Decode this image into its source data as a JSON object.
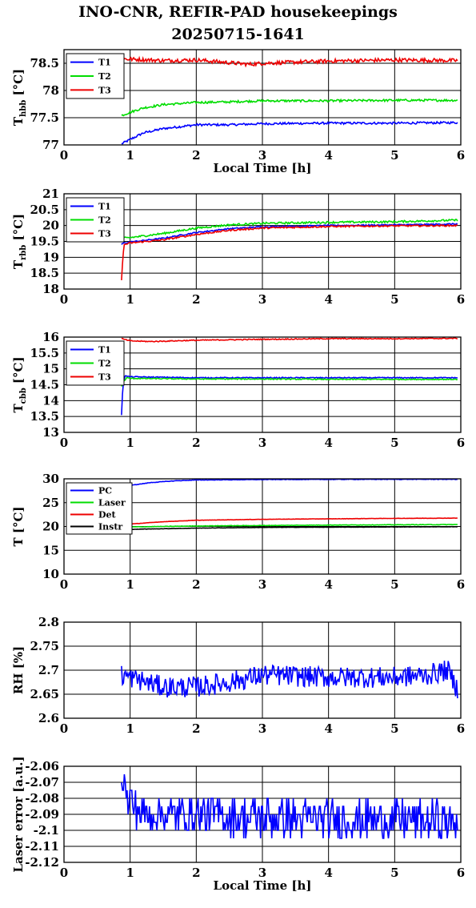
{
  "title_line1": "INO-CNR, REFIR-PAD housekeepings",
  "title_line2": "20250715-1641",
  "colors": {
    "blue": "#0000ff",
    "green": "#00dd00",
    "red": "#ee0000",
    "black": "#000000"
  },
  "chart_data": [
    {
      "type": "line",
      "id": "tbb-hot",
      "ylabel_main": "T",
      "ylabel_sub": "hbb",
      "ylabel_unit": "[°C]",
      "xlabel": "Local Time [h]",
      "xlim": [
        0,
        6
      ],
      "ylim": [
        77,
        78.75
      ],
      "xticks": [
        "0",
        "1",
        "2",
        "3",
        "4",
        "5",
        "6"
      ],
      "yticks": [
        {
          "v": 77,
          "label": "77"
        },
        {
          "v": 77.5,
          "label": "77.5"
        },
        {
          "v": 78,
          "label": "78"
        },
        {
          "v": 78.5,
          "label": "78.5"
        }
      ],
      "legend": [
        {
          "name": "T1",
          "color": "blue"
        },
        {
          "name": "T2",
          "color": "green"
        },
        {
          "name": "T3",
          "color": "red"
        }
      ],
      "series": [
        {
          "name": "T1",
          "color": "blue",
          "noise": 0.02,
          "points": [
            [
              0.87,
              77.02
            ],
            [
              1.0,
              77.1
            ],
            [
              1.2,
              77.22
            ],
            [
              1.5,
              77.3
            ],
            [
              2.0,
              77.37
            ],
            [
              2.5,
              77.37
            ],
            [
              3.0,
              77.39
            ],
            [
              4.0,
              77.4
            ],
            [
              5.0,
              77.4
            ],
            [
              5.95,
              77.41
            ]
          ]
        },
        {
          "name": "T2",
          "color": "green",
          "noise": 0.02,
          "points": [
            [
              0.87,
              77.54
            ],
            [
              1.0,
              77.6
            ],
            [
              1.2,
              77.68
            ],
            [
              1.5,
              77.74
            ],
            [
              2.0,
              77.78
            ],
            [
              2.5,
              77.79
            ],
            [
              3.0,
              77.81
            ],
            [
              4.0,
              77.81
            ],
            [
              5.0,
              77.82
            ],
            [
              5.95,
              77.82
            ]
          ]
        },
        {
          "name": "T3",
          "color": "red",
          "noise": 0.035,
          "points": [
            [
              0.87,
              78.5
            ],
            [
              0.9,
              78.58
            ],
            [
              1.5,
              78.55
            ],
            [
              2.0,
              78.56
            ],
            [
              2.5,
              78.51
            ],
            [
              2.8,
              78.48
            ],
            [
              3.0,
              78.5
            ],
            [
              4.0,
              78.54
            ],
            [
              5.0,
              78.56
            ],
            [
              5.95,
              78.55
            ]
          ]
        }
      ]
    },
    {
      "type": "line",
      "id": "tbb-room",
      "ylabel_main": "T",
      "ylabel_sub": "rbb",
      "ylabel_unit": "[°C]",
      "xlabel": "",
      "xlim": [
        0,
        6
      ],
      "ylim": [
        18,
        21
      ],
      "xticks": [
        "0",
        "1",
        "2",
        "3",
        "4",
        "5",
        "6"
      ],
      "yticks": [
        {
          "v": 18,
          "label": "18"
        },
        {
          "v": 18.5,
          "label": "18.5"
        },
        {
          "v": 19,
          "label": "19"
        },
        {
          "v": 19.5,
          "label": "19.5"
        },
        {
          "v": 20,
          "label": "20"
        },
        {
          "v": 20.5,
          "label": "20.5"
        },
        {
          "v": 21,
          "label": "21"
        }
      ],
      "legend": [
        {
          "name": "T1",
          "color": "blue"
        },
        {
          "name": "T2",
          "color": "green"
        },
        {
          "name": "T3",
          "color": "red"
        }
      ],
      "series": [
        {
          "name": "T1",
          "color": "blue",
          "noise": 0.02,
          "points": [
            [
              0.87,
              19.4
            ],
            [
              0.9,
              19.45
            ],
            [
              1.0,
              19.48
            ],
            [
              1.5,
              19.6
            ],
            [
              2.0,
              19.78
            ],
            [
              2.5,
              19.9
            ],
            [
              3.0,
              19.96
            ],
            [
              4.0,
              20.0
            ],
            [
              5.0,
              20.02
            ],
            [
              5.95,
              20.05
            ]
          ]
        },
        {
          "name": "T2",
          "color": "green",
          "noise": 0.03,
          "points": [
            [
              0.87,
              19.55
            ],
            [
              0.9,
              19.6
            ],
            [
              1.0,
              19.62
            ],
            [
              1.5,
              19.75
            ],
            [
              2.0,
              19.92
            ],
            [
              2.5,
              20.02
            ],
            [
              3.0,
              20.07
            ],
            [
              4.0,
              20.1
            ],
            [
              5.0,
              20.12
            ],
            [
              5.95,
              20.17
            ]
          ]
        },
        {
          "name": "T3",
          "color": "red",
          "noise": 0.025,
          "points": [
            [
              0.87,
              18.3
            ],
            [
              0.89,
              19.0
            ],
            [
              0.91,
              19.4
            ],
            [
              1.0,
              19.45
            ],
            [
              1.5,
              19.55
            ],
            [
              2.0,
              19.72
            ],
            [
              2.5,
              19.85
            ],
            [
              3.0,
              19.92
            ],
            [
              4.0,
              19.97
            ],
            [
              5.0,
              19.99
            ],
            [
              5.95,
              20.0
            ]
          ]
        }
      ]
    },
    {
      "type": "line",
      "id": "tbb-cold",
      "ylabel_main": "T",
      "ylabel_sub": "cbb",
      "ylabel_unit": "[°C]",
      "xlabel": "",
      "xlim": [
        0,
        6
      ],
      "ylim": [
        13,
        16
      ],
      "xticks": [
        "0",
        "1",
        "2",
        "3",
        "4",
        "5",
        "6"
      ],
      "yticks": [
        {
          "v": 13,
          "label": "13"
        },
        {
          "v": 13.5,
          "label": "13.5"
        },
        {
          "v": 14,
          "label": "14"
        },
        {
          "v": 14.5,
          "label": "14.5"
        },
        {
          "v": 15,
          "label": "15"
        },
        {
          "v": 15.5,
          "label": "15.5"
        },
        {
          "v": 16,
          "label": "16"
        }
      ],
      "legend": [
        {
          "name": "T1",
          "color": "blue"
        },
        {
          "name": "T2",
          "color": "green"
        },
        {
          "name": "T3",
          "color": "red"
        }
      ],
      "series": [
        {
          "name": "T1",
          "color": "blue",
          "noise": 0.015,
          "points": [
            [
              0.87,
              13.55
            ],
            [
              0.89,
              14.5
            ],
            [
              0.92,
              14.78
            ],
            [
              1.0,
              14.75
            ],
            [
              2.0,
              14.72
            ],
            [
              3.0,
              14.72
            ],
            [
              4.0,
              14.72
            ],
            [
              5.0,
              14.72
            ],
            [
              5.95,
              14.72
            ]
          ]
        },
        {
          "name": "T2",
          "color": "green",
          "noise": 0.015,
          "points": [
            [
              0.87,
              14.45
            ],
            [
              0.9,
              14.6
            ],
            [
              0.95,
              14.72
            ],
            [
              1.0,
              14.7
            ],
            [
              2.0,
              14.68
            ],
            [
              3.0,
              14.68
            ],
            [
              4.0,
              14.67
            ],
            [
              5.0,
              14.67
            ],
            [
              5.95,
              14.67
            ]
          ]
        },
        {
          "name": "T3",
          "color": "red",
          "noise": 0.015,
          "points": [
            [
              0.87,
              15.95
            ],
            [
              1.0,
              15.88
            ],
            [
              1.3,
              15.86
            ],
            [
              2.0,
              15.9
            ],
            [
              3.0,
              15.93
            ],
            [
              4.0,
              15.95
            ],
            [
              5.0,
              15.95
            ],
            [
              5.95,
              15.96
            ]
          ]
        }
      ]
    },
    {
      "type": "line",
      "id": "temps",
      "ylabel_main": "T [°C]",
      "ylabel_sub": "",
      "ylabel_unit": "",
      "xlabel": "",
      "xlim": [
        0,
        6
      ],
      "ylim": [
        10,
        30
      ],
      "xticks": [
        "0",
        "1",
        "2",
        "3",
        "4",
        "5",
        "6"
      ],
      "yticks": [
        {
          "v": 10,
          "label": "10"
        },
        {
          "v": 15,
          "label": "15"
        },
        {
          "v": 20,
          "label": "20"
        },
        {
          "v": 25,
          "label": "25"
        },
        {
          "v": 30,
          "label": "30"
        }
      ],
      "legend": [
        {
          "name": "PC",
          "color": "blue"
        },
        {
          "name": "Laser",
          "color": "green"
        },
        {
          "name": "Det",
          "color": "red"
        },
        {
          "name": "Instr",
          "color": "black"
        }
      ],
      "series": [
        {
          "name": "PC",
          "color": "blue",
          "noise": 0.05,
          "points": [
            [
              0.87,
              28.0
            ],
            [
              1.0,
              28.6
            ],
            [
              1.3,
              29.2
            ],
            [
              1.7,
              29.6
            ],
            [
              2.0,
              29.75
            ],
            [
              3.0,
              29.85
            ],
            [
              4.0,
              29.88
            ],
            [
              5.0,
              29.9
            ],
            [
              5.95,
              29.9
            ]
          ]
        },
        {
          "name": "Laser",
          "color": "green",
          "noise": 0.05,
          "points": [
            [
              0.87,
              19.8
            ],
            [
              1.0,
              19.9
            ],
            [
              2.0,
              20.1
            ],
            [
              3.0,
              20.2
            ],
            [
              4.0,
              20.3
            ],
            [
              5.0,
              20.35
            ],
            [
              5.95,
              20.4
            ]
          ]
        },
        {
          "name": "Det",
          "color": "red",
          "noise": 0.03,
          "points": [
            [
              0.87,
              20.3
            ],
            [
              1.0,
              20.5
            ],
            [
              1.5,
              21.0
            ],
            [
              2.0,
              21.3
            ],
            [
              3.0,
              21.5
            ],
            [
              4.0,
              21.6
            ],
            [
              5.0,
              21.7
            ],
            [
              5.95,
              21.75
            ]
          ]
        },
        {
          "name": "Instr",
          "color": "black",
          "noise": 0.03,
          "points": [
            [
              0.87,
              19.3
            ],
            [
              1.0,
              19.4
            ],
            [
              2.0,
              19.65
            ],
            [
              3.0,
              19.8
            ],
            [
              4.0,
              19.85
            ],
            [
              5.0,
              19.9
            ],
            [
              5.95,
              19.95
            ]
          ]
        }
      ]
    },
    {
      "type": "line",
      "id": "rh",
      "ylabel_main": "RH [%]",
      "ylabel_sub": "",
      "ylabel_unit": "",
      "xlabel": "",
      "xlim": [
        0,
        6
      ],
      "ylim": [
        2.6,
        2.8
      ],
      "xticks": [
        "0",
        "1",
        "2",
        "3",
        "4",
        "5",
        "6"
      ],
      "yticks": [
        {
          "v": 2.6,
          "label": "2.6"
        },
        {
          "v": 2.65,
          "label": "2.65"
        },
        {
          "v": 2.7,
          "label": "2.7"
        },
        {
          "v": 2.75,
          "label": "2.75"
        },
        {
          "v": 2.8,
          "label": "2.8"
        }
      ],
      "legend": [],
      "series": [
        {
          "name": "",
          "color": "blue",
          "noise": 0.022,
          "points": [
            [
              0.87,
              2.69
            ],
            [
              1.5,
              2.665
            ],
            [
              2.0,
              2.665
            ],
            [
              2.5,
              2.675
            ],
            [
              3.0,
              2.69
            ],
            [
              4.0,
              2.685
            ],
            [
              5.0,
              2.685
            ],
            [
              5.5,
              2.69
            ],
            [
              5.8,
              2.7
            ],
            [
              5.95,
              2.66
            ]
          ]
        }
      ]
    },
    {
      "type": "line",
      "id": "laser-error",
      "ylabel_main": "Laser error [a.u.]",
      "ylabel_sub": "",
      "ylabel_unit": "",
      "xlabel": "Local Time [h]",
      "xlim": [
        0,
        6
      ],
      "ylim": [
        -2.12,
        -2.06
      ],
      "xticks": [
        "0",
        "1",
        "2",
        "3",
        "4",
        "5",
        "6"
      ],
      "yticks": [
        {
          "v": -2.12,
          "label": "-2.12"
        },
        {
          "v": -2.11,
          "label": "-2.11"
        },
        {
          "v": -2.1,
          "label": "-2.1"
        },
        {
          "v": -2.09,
          "label": "-2.09"
        },
        {
          "v": -2.08,
          "label": "-2.08"
        },
        {
          "v": -2.07,
          "label": "-2.07"
        },
        {
          "v": -2.06,
          "label": "-2.06"
        }
      ],
      "legend": [],
      "series": [
        {
          "name": "",
          "color": "blue",
          "noise": 0.0125,
          "step": 0.005,
          "points": [
            [
              0.87,
              -2.06
            ],
            [
              0.95,
              -2.08
            ],
            [
              1.2,
              -2.09
            ],
            [
              2.0,
              -2.09
            ],
            [
              3.0,
              -2.092
            ],
            [
              4.0,
              -2.093
            ],
            [
              5.0,
              -2.093
            ],
            [
              5.95,
              -2.095
            ]
          ]
        }
      ]
    }
  ]
}
